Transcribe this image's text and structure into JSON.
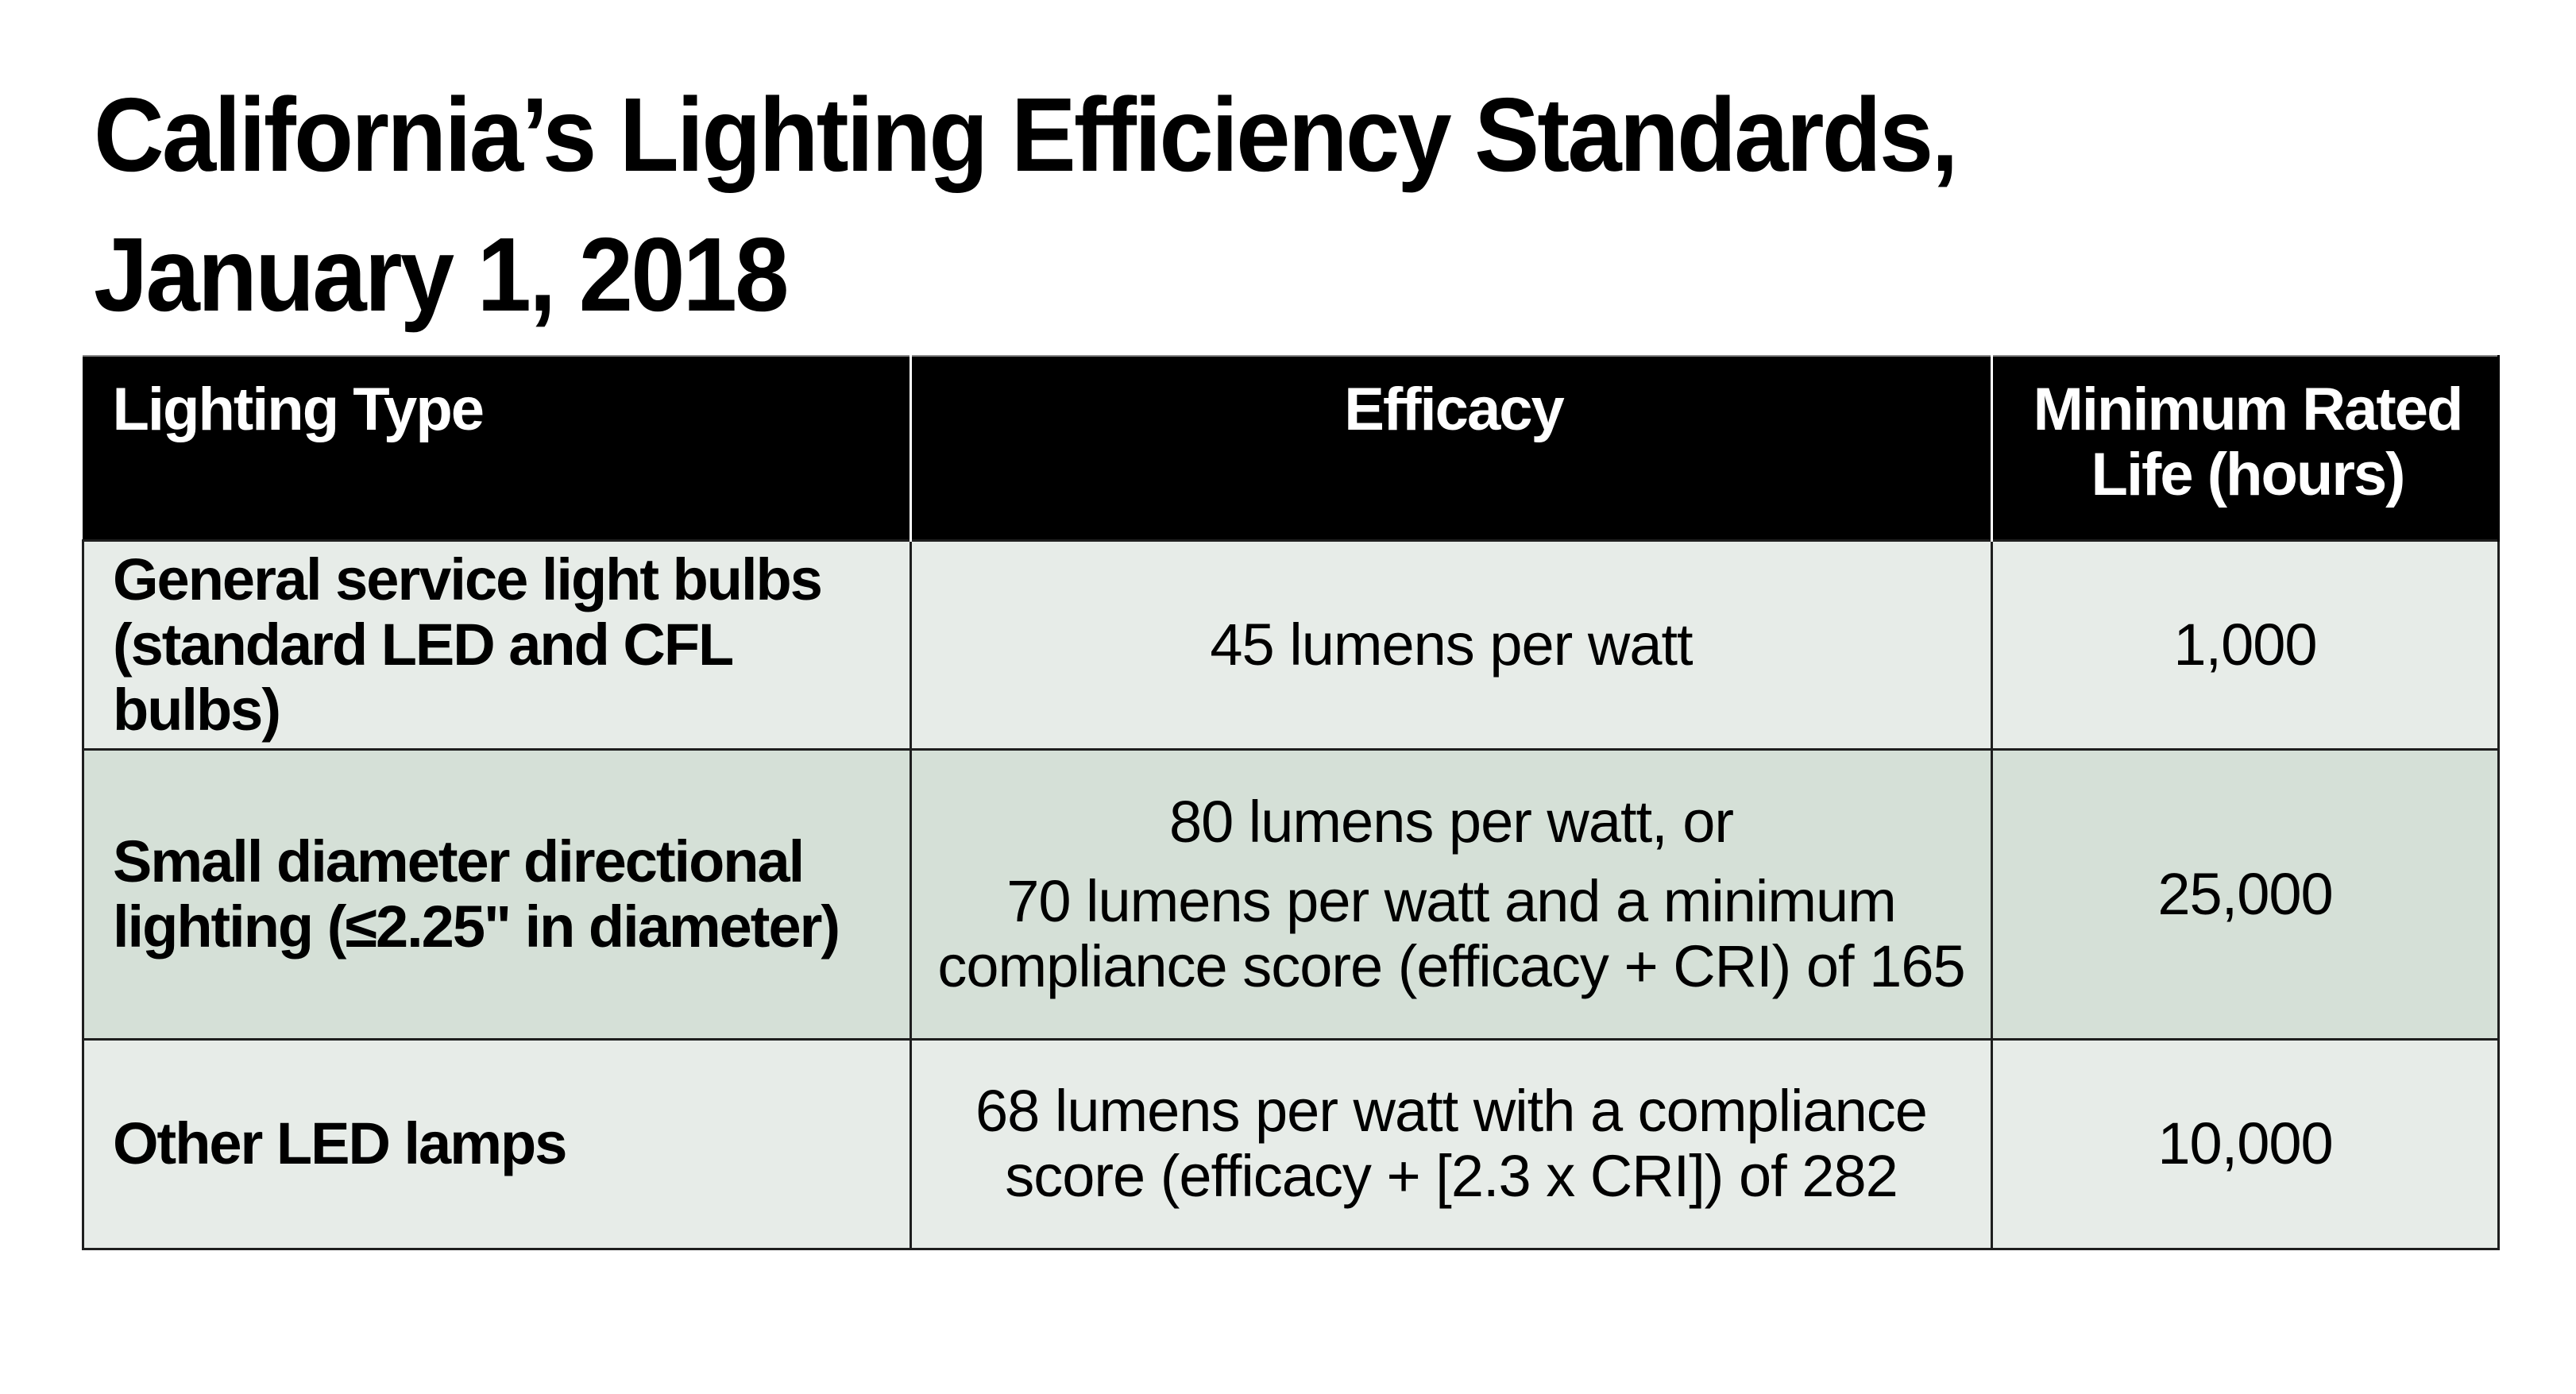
{
  "title": {
    "line1": "California’s Lighting Efficiency Standards,",
    "line2": "January 1, 2018"
  },
  "table": {
    "headers": {
      "lighting_type": "Lighting Type",
      "efficacy": "Efficacy",
      "min_life_line1": "Minimum Rated",
      "min_life_line2": "Life (hours)"
    },
    "rows": [
      {
        "type_line1": "General service light bulbs",
        "type_line2": "(standard LED and CFL bulbs)",
        "efficacy_p1_line1": "45 lumens per watt",
        "min_life": "1,000"
      },
      {
        "type_line1": "Small diameter directional",
        "type_line2": "lighting (≤2.25\" in diameter)",
        "efficacy_p1_line1": "80 lumens per watt, or",
        "efficacy_p2_line1": "70 lumens per watt and a minimum",
        "efficacy_p2_line2": "compliance score (efficacy + CRI) of 165",
        "min_life": "25,000"
      },
      {
        "type_line1": "Other LED lamps",
        "efficacy_p1_line1": "68 lumens per watt with a compliance",
        "efficacy_p1_line2": "score (efficacy + [2.3 x CRI]) of 282",
        "min_life": "10,000"
      }
    ]
  },
  "colors": {
    "header_bg": "#000000",
    "row_light": "#e7ece8",
    "row_dark": "#d5e0d7"
  }
}
